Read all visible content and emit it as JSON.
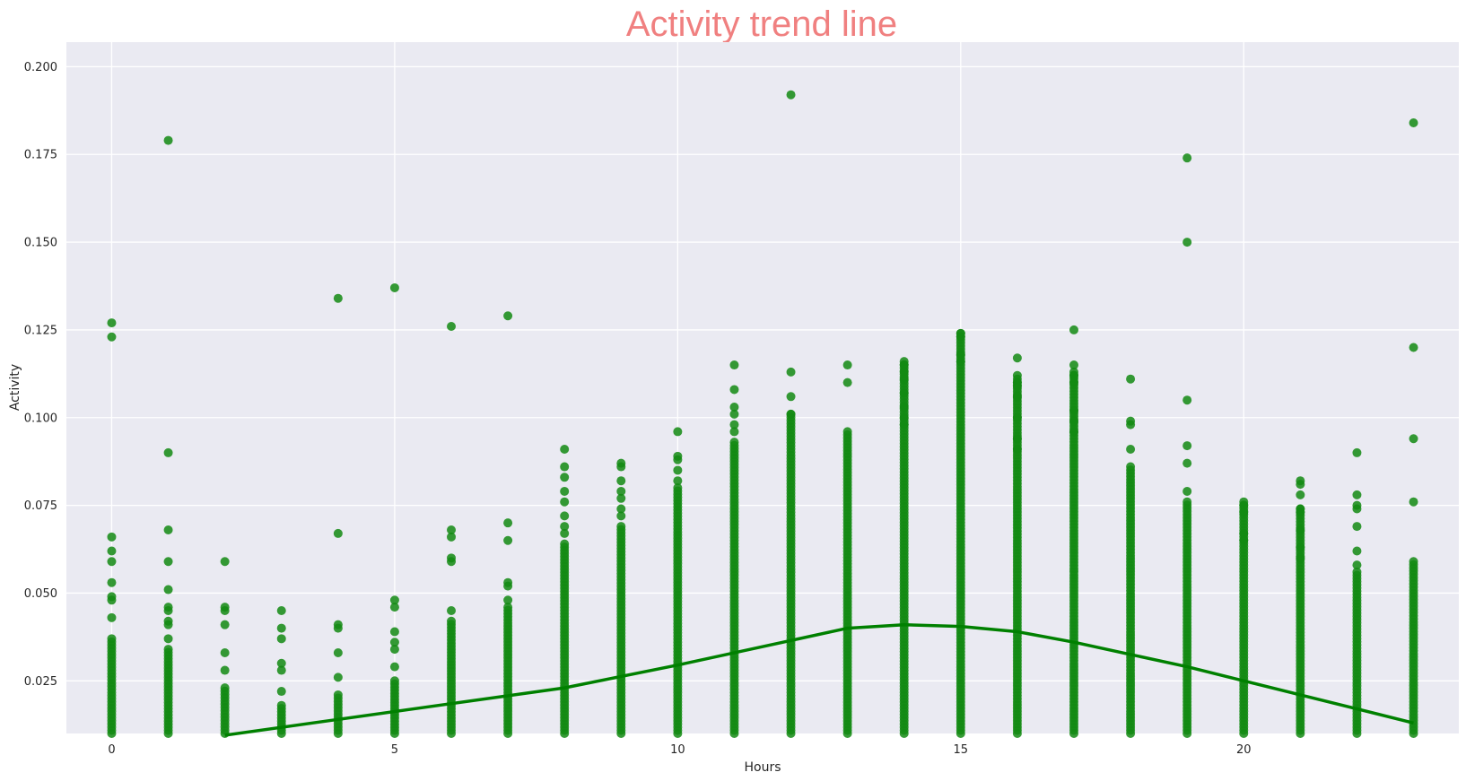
{
  "chart_data": {
    "type": "scatter",
    "title": "Activity trend line",
    "xlabel": "Hours",
    "ylabel": "Activity",
    "xlim": [
      -0.8,
      23.8
    ],
    "ylim": [
      0.01,
      0.207
    ],
    "xticks": [
      0,
      5,
      10,
      15,
      20
    ],
    "xtick_labels": [
      "0",
      "5",
      "10",
      "15",
      "20"
    ],
    "yticks": [
      0.025,
      0.05,
      0.075,
      0.1,
      0.125,
      0.15,
      0.175,
      0.2
    ],
    "ytick_labels": [
      "0.025",
      "0.050",
      "0.075",
      "0.100",
      "0.125",
      "0.150",
      "0.175",
      "0.200"
    ],
    "grid": true,
    "colors": {
      "title": "#f08080",
      "points": "#138a13",
      "trend": "#008000",
      "plot_bg": "#eaeaf2",
      "grid": "#ffffff"
    },
    "column_ranges": [
      {
        "x": 0,
        "y_min": 0.01,
        "y_max": 0.037
      },
      {
        "x": 1,
        "y_min": 0.01,
        "y_max": 0.034
      },
      {
        "x": 2,
        "y_min": 0.01,
        "y_max": 0.023
      },
      {
        "x": 3,
        "y_min": 0.01,
        "y_max": 0.018
      },
      {
        "x": 4,
        "y_min": 0.01,
        "y_max": 0.021
      },
      {
        "x": 5,
        "y_min": 0.01,
        "y_max": 0.025
      },
      {
        "x": 6,
        "y_min": 0.01,
        "y_max": 0.042
      },
      {
        "x": 7,
        "y_min": 0.01,
        "y_max": 0.046
      },
      {
        "x": 8,
        "y_min": 0.01,
        "y_max": 0.064
      },
      {
        "x": 9,
        "y_min": 0.01,
        "y_max": 0.069
      },
      {
        "x": 10,
        "y_min": 0.01,
        "y_max": 0.08
      },
      {
        "x": 11,
        "y_min": 0.01,
        "y_max": 0.093
      },
      {
        "x": 12,
        "y_min": 0.01,
        "y_max": 0.101
      },
      {
        "x": 13,
        "y_min": 0.01,
        "y_max": 0.096
      },
      {
        "x": 14,
        "y_min": 0.01,
        "y_max": 0.116
      },
      {
        "x": 15,
        "y_min": 0.01,
        "y_max": 0.124
      },
      {
        "x": 16,
        "y_min": 0.01,
        "y_max": 0.111
      },
      {
        "x": 17,
        "y_min": 0.01,
        "y_max": 0.113
      },
      {
        "x": 18,
        "y_min": 0.01,
        "y_max": 0.086
      },
      {
        "x": 19,
        "y_min": 0.01,
        "y_max": 0.076
      },
      {
        "x": 20,
        "y_min": 0.01,
        "y_max": 0.076
      },
      {
        "x": 21,
        "y_min": 0.01,
        "y_max": 0.074
      },
      {
        "x": 22,
        "y_min": 0.01,
        "y_max": 0.056
      },
      {
        "x": 23,
        "y_min": 0.01,
        "y_max": 0.059
      }
    ],
    "points": [
      [
        0,
        0.127
      ],
      [
        0,
        0.123
      ],
      [
        0,
        0.066
      ],
      [
        0,
        0.062
      ],
      [
        0,
        0.059
      ],
      [
        0,
        0.053
      ],
      [
        0,
        0.049
      ],
      [
        0,
        0.048
      ],
      [
        0,
        0.043
      ],
      [
        1,
        0.179
      ],
      [
        1,
        0.09
      ],
      [
        1,
        0.068
      ],
      [
        1,
        0.059
      ],
      [
        1,
        0.051
      ],
      [
        1,
        0.046
      ],
      [
        1,
        0.045
      ],
      [
        1,
        0.042
      ],
      [
        1,
        0.041
      ],
      [
        1,
        0.037
      ],
      [
        2,
        0.059
      ],
      [
        2,
        0.046
      ],
      [
        2,
        0.045
      ],
      [
        2,
        0.041
      ],
      [
        2,
        0.033
      ],
      [
        2,
        0.028
      ],
      [
        3,
        0.045
      ],
      [
        3,
        0.04
      ],
      [
        3,
        0.037
      ],
      [
        3,
        0.03
      ],
      [
        3,
        0.028
      ],
      [
        3,
        0.022
      ],
      [
        4,
        0.134
      ],
      [
        4,
        0.067
      ],
      [
        4,
        0.041
      ],
      [
        4,
        0.04
      ],
      [
        4,
        0.033
      ],
      [
        4,
        0.026
      ],
      [
        5,
        0.137
      ],
      [
        5,
        0.048
      ],
      [
        5,
        0.046
      ],
      [
        5,
        0.039
      ],
      [
        5,
        0.036
      ],
      [
        5,
        0.034
      ],
      [
        5,
        0.029
      ],
      [
        6,
        0.126
      ],
      [
        6,
        0.068
      ],
      [
        6,
        0.066
      ],
      [
        6,
        0.06
      ],
      [
        6,
        0.059
      ],
      [
        6,
        0.045
      ],
      [
        7,
        0.129
      ],
      [
        7,
        0.07
      ],
      [
        7,
        0.065
      ],
      [
        7,
        0.053
      ],
      [
        7,
        0.052
      ],
      [
        7,
        0.048
      ],
      [
        8,
        0.091
      ],
      [
        8,
        0.086
      ],
      [
        8,
        0.083
      ],
      [
        8,
        0.079
      ],
      [
        8,
        0.076
      ],
      [
        8,
        0.072
      ],
      [
        8,
        0.069
      ],
      [
        8,
        0.067
      ],
      [
        9,
        0.087
      ],
      [
        9,
        0.086
      ],
      [
        9,
        0.082
      ],
      [
        9,
        0.079
      ],
      [
        9,
        0.077
      ],
      [
        9,
        0.074
      ],
      [
        9,
        0.072
      ],
      [
        10,
        0.096
      ],
      [
        10,
        0.089
      ],
      [
        10,
        0.088
      ],
      [
        10,
        0.085
      ],
      [
        10,
        0.082
      ],
      [
        11,
        0.115
      ],
      [
        11,
        0.108
      ],
      [
        11,
        0.103
      ],
      [
        11,
        0.101
      ],
      [
        11,
        0.098
      ],
      [
        11,
        0.096
      ],
      [
        12,
        0.192
      ],
      [
        12,
        0.113
      ],
      [
        12,
        0.106
      ],
      [
        12,
        0.101
      ],
      [
        13,
        0.115
      ],
      [
        13,
        0.11
      ],
      [
        14,
        0.115
      ],
      [
        14,
        0.113
      ],
      [
        14,
        0.111
      ],
      [
        14,
        0.107
      ],
      [
        14,
        0.103
      ],
      [
        14,
        0.1
      ],
      [
        14,
        0.098
      ],
      [
        15,
        0.124
      ],
      [
        15,
        0.123
      ],
      [
        15,
        0.118
      ],
      [
        15,
        0.116
      ],
      [
        16,
        0.117
      ],
      [
        16,
        0.112
      ],
      [
        16,
        0.11
      ],
      [
        16,
        0.109
      ],
      [
        16,
        0.106
      ],
      [
        16,
        0.1
      ],
      [
        16,
        0.094
      ],
      [
        16,
        0.091
      ],
      [
        17,
        0.125
      ],
      [
        17,
        0.115
      ],
      [
        17,
        0.112
      ],
      [
        17,
        0.11
      ],
      [
        17,
        0.102
      ],
      [
        17,
        0.099
      ],
      [
        17,
        0.096
      ],
      [
        18,
        0.111
      ],
      [
        18,
        0.099
      ],
      [
        18,
        0.098
      ],
      [
        18,
        0.091
      ],
      [
        19,
        0.174
      ],
      [
        19,
        0.15
      ],
      [
        19,
        0.105
      ],
      [
        19,
        0.092
      ],
      [
        19,
        0.087
      ],
      [
        19,
        0.079
      ],
      [
        20,
        0.075
      ],
      [
        20,
        0.073
      ],
      [
        20,
        0.067
      ],
      [
        20,
        0.065
      ],
      [
        21,
        0.082
      ],
      [
        21,
        0.081
      ],
      [
        21,
        0.078
      ],
      [
        21,
        0.074
      ],
      [
        21,
        0.073
      ],
      [
        21,
        0.068
      ],
      [
        21,
        0.063
      ],
      [
        21,
        0.06
      ],
      [
        22,
        0.09
      ],
      [
        22,
        0.078
      ],
      [
        22,
        0.075
      ],
      [
        22,
        0.074
      ],
      [
        22,
        0.069
      ],
      [
        22,
        0.062
      ],
      [
        22,
        0.058
      ],
      [
        23,
        0.184
      ],
      [
        23,
        0.12
      ],
      [
        23,
        0.094
      ],
      [
        23,
        0.076
      ]
    ],
    "trend_line": {
      "x": [
        2,
        4,
        6,
        8,
        10,
        12,
        13,
        14,
        15,
        16,
        17,
        18,
        19,
        20,
        21,
        22,
        23
      ],
      "y": [
        0.0095,
        0.014,
        0.0185,
        0.023,
        0.0295,
        0.0365,
        0.04,
        0.041,
        0.0405,
        0.039,
        0.036,
        0.0325,
        0.029,
        0.025,
        0.021,
        0.017,
        0.013
      ]
    }
  }
}
